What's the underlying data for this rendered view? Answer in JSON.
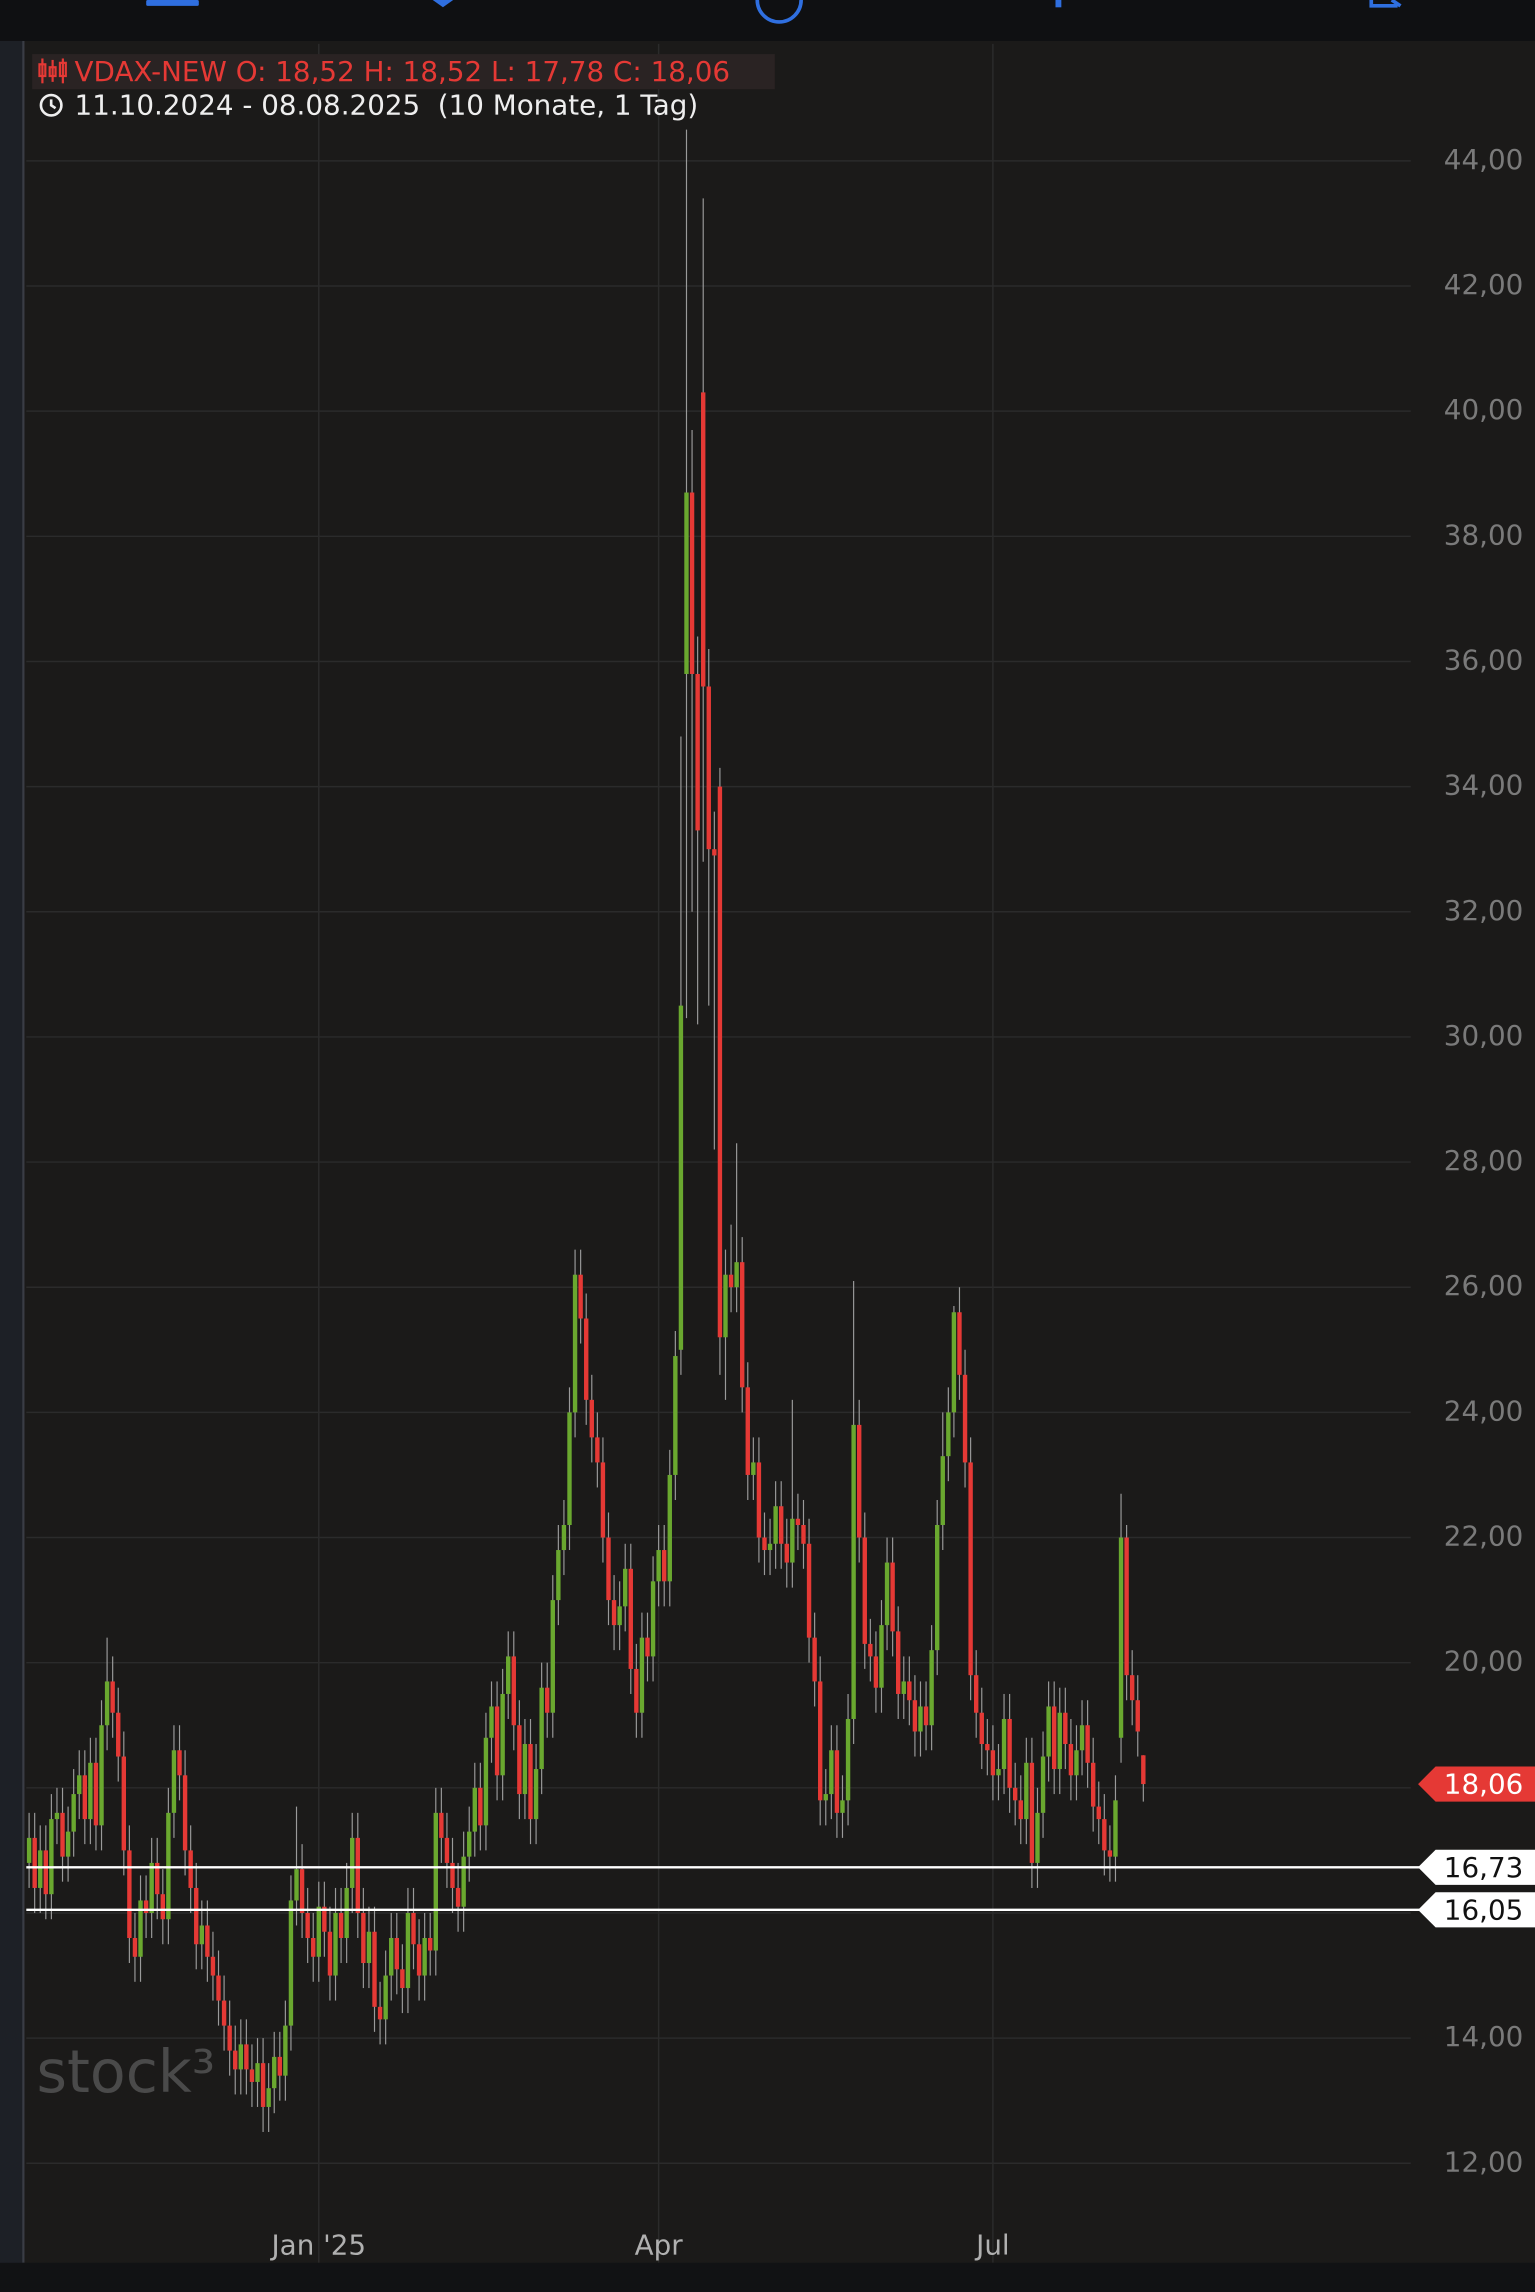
{
  "chart_data": {
    "type": "candlestick",
    "title": "VDAX-NEW",
    "ohlc": [
      {
        "key": "O:",
        "label": "18,52"
      },
      {
        "key": "H:",
        "label": "18,52"
      },
      {
        "key": "L:",
        "label": "17,78"
      },
      {
        "key": "C:",
        "label": "18,06"
      }
    ],
    "date_range": "11.10.2024 - 08.08.2025",
    "period": "(10 Monate, 1 Tag)",
    "watermark": "stock³",
    "up_color": "#6aa82f",
    "down_color": "#e53935",
    "grid": true,
    "x": [
      0,
      1,
      2,
      3,
      4,
      5,
      6,
      7,
      8,
      9,
      10,
      11,
      12,
      13,
      14,
      15,
      16,
      17,
      18,
      19,
      20,
      21,
      22,
      23,
      24,
      25,
      26,
      27,
      28,
      29,
      30,
      31,
      32,
      33,
      34,
      35,
      36,
      37,
      38,
      39,
      40,
      41,
      42,
      43,
      44,
      45,
      46,
      47,
      48,
      49,
      50,
      51,
      52,
      53,
      54,
      55,
      56,
      57,
      58,
      59,
      60,
      61,
      62,
      63,
      64,
      65,
      66,
      67,
      68,
      69,
      70,
      71,
      72,
      73,
      74,
      75,
      76,
      77,
      78,
      79,
      80,
      81,
      82,
      83,
      84,
      85,
      86,
      87,
      88,
      89,
      90,
      91,
      92,
      93,
      94,
      95,
      96,
      97,
      98,
      99,
      100,
      101,
      102,
      103,
      104,
      105,
      106,
      107,
      108,
      109,
      110,
      111,
      112,
      113,
      114,
      115,
      116,
      117,
      118,
      119,
      120,
      121,
      122,
      123,
      124,
      125,
      126,
      127,
      128,
      129,
      130,
      131,
      132,
      133,
      134,
      135,
      136,
      137,
      138,
      139,
      140,
      141,
      142,
      143,
      144,
      145,
      146,
      147,
      148,
      149,
      150,
      151,
      152,
      153,
      154,
      155,
      156,
      157,
      158,
      159,
      160,
      161,
      162,
      163,
      164,
      165,
      166,
      167,
      168,
      169,
      170,
      171,
      172,
      173,
      174,
      175,
      176,
      177,
      178,
      179,
      180,
      181,
      182,
      183,
      184,
      185,
      186,
      187,
      188,
      189,
      190,
      191,
      192,
      193,
      194,
      195,
      196,
      197,
      198,
      199,
      200
    ],
    "open": [
      16.8,
      17.2,
      16.4,
      17.0,
      16.3,
      17.5,
      17.6,
      16.9,
      17.3,
      17.9,
      18.2,
      17.5,
      18.4,
      17.4,
      19.0,
      19.7,
      19.2,
      18.5,
      17.0,
      15.6,
      15.3,
      16.2,
      16.0,
      16.8,
      16.3,
      15.9,
      17.6,
      18.6,
      18.2,
      17.0,
      16.4,
      15.5,
      15.8,
      15.3,
      15.0,
      14.6,
      14.2,
      13.8,
      13.5,
      13.9,
      13.5,
      13.3,
      13.6,
      12.9,
      13.2,
      13.7,
      13.4,
      14.2,
      16.2,
      16.7,
      16.0,
      15.6,
      15.3,
      16.1,
      15.7,
      15.0,
      16.0,
      15.6,
      16.4,
      17.2,
      16.0,
      15.2,
      15.7,
      14.5,
      14.3,
      15.0,
      15.6,
      15.1,
      14.8,
      16.0,
      15.5,
      15.0,
      15.6,
      15.4,
      17.6,
      17.2,
      16.8,
      16.4,
      16.1,
      16.9,
      17.3,
      18.0,
      17.4,
      18.8,
      19.3,
      18.2,
      19.5,
      20.1,
      19.0,
      17.9,
      18.7,
      17.5,
      18.3,
      19.6,
      19.2,
      21.0,
      21.8,
      22.2,
      24.0,
      26.2,
      25.5,
      24.2,
      23.6,
      23.2,
      22.0,
      21.0,
      20.6,
      20.9,
      21.5,
      19.9,
      19.2,
      20.4,
      20.1,
      21.3,
      21.8,
      21.3,
      23.0,
      25.0,
      35.8,
      38.7,
      35.8,
      40.3,
      35.6,
      33.0,
      34.0,
      25.2,
      26.2,
      26.0,
      26.4,
      24.4,
      23.0,
      23.2,
      22.0,
      21.8,
      21.9,
      22.5,
      21.9,
      21.6,
      22.3,
      22.2,
      21.9,
      20.4,
      19.7,
      17.8,
      17.9,
      18.6,
      17.6,
      17.8,
      19.1,
      23.8,
      22.0,
      20.3,
      20.1,
      19.6,
      20.6,
      21.6,
      20.5,
      19.5,
      19.7,
      19.4,
      18.9,
      19.3,
      19.0,
      20.2,
      22.2,
      23.3,
      24.0,
      25.6,
      24.6,
      23.2,
      19.8,
      19.2,
      18.7,
      18.6,
      18.2,
      18.3,
      19.1,
      18.0,
      17.8,
      17.5,
      18.4,
      16.8,
      17.6,
      18.5,
      19.3,
      18.3,
      19.2,
      18.7,
      18.2,
      18.6,
      19.0,
      18.4,
      17.7,
      17.5,
      17.0,
      16.9,
      18.8,
      22.0,
      19.8,
      19.4,
      18.52
    ],
    "high": [
      17.6,
      17.6,
      17.4,
      17.4,
      17.9,
      18.0,
      18.0,
      17.7,
      18.3,
      18.6,
      18.6,
      18.8,
      18.8,
      19.4,
      20.4,
      20.1,
      19.6,
      18.9,
      17.4,
      16.0,
      16.6,
      16.6,
      17.2,
      17.2,
      16.7,
      18.0,
      19.0,
      19.0,
      18.6,
      17.4,
      16.8,
      16.2,
      16.2,
      15.7,
      15.4,
      15.0,
      14.6,
      14.2,
      14.3,
      14.3,
      13.9,
      14.0,
      14.0,
      13.6,
      14.1,
      14.1,
      14.6,
      16.6,
      17.7,
      17.1,
      16.4,
      16.0,
      16.5,
      16.5,
      16.1,
      16.4,
      16.4,
      16.8,
      17.6,
      17.6,
      16.4,
      16.1,
      16.1,
      14.9,
      15.4,
      16.0,
      16.0,
      15.5,
      16.4,
      16.4,
      15.9,
      16.0,
      16.0,
      18.0,
      18.0,
      17.6,
      17.2,
      16.8,
      17.3,
      17.7,
      18.4,
      18.4,
      19.2,
      19.7,
      19.7,
      19.9,
      20.5,
      20.5,
      19.4,
      19.1,
      19.1,
      18.7,
      20.0,
      20.0,
      21.4,
      22.2,
      22.6,
      24.4,
      26.6,
      26.6,
      25.9,
      24.6,
      24.0,
      23.6,
      22.4,
      21.4,
      21.3,
      21.9,
      21.9,
      20.3,
      20.8,
      20.8,
      21.7,
      22.2,
      22.2,
      23.4,
      25.3,
      34.8,
      44.5,
      39.7,
      36.4,
      43.4,
      36.2,
      33.6,
      34.3,
      26.6,
      27.0,
      28.3,
      26.8,
      24.8,
      23.6,
      23.6,
      22.4,
      22.3,
      22.9,
      22.9,
      22.3,
      24.2,
      22.7,
      22.6,
      22.3,
      20.8,
      20.1,
      18.3,
      19.0,
      19.0,
      18.2,
      19.5,
      26.1,
      24.2,
      22.4,
      20.7,
      20.5,
      21.0,
      22.0,
      22.0,
      20.9,
      20.1,
      20.1,
      19.8,
      19.7,
      19.7,
      20.6,
      22.6,
      24.0,
      24.4,
      25.7,
      26.0,
      25.0,
      23.6,
      20.2,
      19.6,
      19.1,
      19.0,
      18.7,
      19.5,
      19.5,
      18.4,
      18.2,
      18.8,
      18.8,
      18.0,
      18.9,
      19.7,
      19.7,
      19.6,
      19.6,
      19.1,
      19.0,
      19.4,
      19.4,
      18.8,
      18.1,
      17.9,
      17.4,
      18.2,
      22.7,
      22.2,
      20.2,
      19.8,
      18.52
    ],
    "low": [
      16.4,
      16.0,
      16.0,
      15.9,
      15.9,
      17.1,
      16.5,
      16.5,
      16.9,
      17.5,
      17.1,
      17.1,
      17.0,
      17.0,
      18.6,
      18.8,
      18.1,
      16.6,
      15.2,
      14.9,
      14.9,
      15.6,
      15.6,
      15.9,
      15.5,
      15.5,
      17.2,
      17.8,
      16.6,
      16.0,
      15.1,
      15.1,
      14.9,
      14.6,
      14.2,
      13.8,
      13.4,
      13.1,
      13.1,
      13.1,
      12.9,
      12.9,
      12.5,
      12.5,
      12.8,
      13.0,
      13.0,
      13.8,
      15.8,
      15.6,
      15.2,
      14.9,
      14.9,
      15.3,
      14.6,
      14.6,
      15.2,
      15.2,
      16.0,
      15.6,
      14.8,
      14.8,
      14.1,
      13.9,
      13.9,
      14.6,
      14.7,
      14.4,
      14.4,
      15.1,
      14.6,
      14.6,
      15.0,
      15.0,
      16.8,
      16.4,
      16.0,
      15.7,
      15.7,
      16.5,
      16.9,
      17.0,
      17.0,
      18.4,
      17.8,
      17.8,
      19.1,
      18.6,
      17.5,
      17.5,
      17.1,
      17.1,
      17.9,
      18.8,
      18.8,
      20.6,
      21.4,
      21.8,
      23.6,
      25.1,
      23.8,
      23.2,
      22.8,
      21.6,
      20.6,
      20.2,
      20.2,
      20.5,
      19.5,
      18.8,
      18.8,
      19.7,
      19.7,
      20.9,
      20.9,
      20.9,
      22.6,
      24.6,
      30.3,
      32.0,
      30.2,
      32.8,
      30.5,
      28.2,
      24.6,
      24.2,
      25.6,
      25.6,
      24.0,
      22.6,
      22.6,
      21.6,
      21.4,
      21.4,
      21.5,
      21.5,
      21.2,
      21.2,
      21.8,
      21.5,
      20.0,
      19.3,
      17.4,
      17.4,
      17.5,
      17.2,
      17.2,
      17.4,
      18.7,
      21.6,
      19.9,
      19.7,
      19.2,
      19.2,
      20.2,
      20.1,
      19.1,
      19.1,
      19.0,
      18.5,
      18.5,
      18.6,
      18.6,
      19.8,
      21.8,
      22.9,
      23.6,
      24.2,
      22.8,
      19.4,
      18.8,
      18.3,
      18.2,
      17.8,
      17.8,
      17.9,
      17.6,
      17.4,
      17.1,
      17.1,
      16.4,
      16.4,
      17.2,
      18.1,
      17.9,
      17.9,
      18.3,
      17.8,
      17.8,
      18.2,
      18.0,
      17.3,
      17.1,
      16.6,
      16.5,
      16.5,
      18.4,
      19.4,
      19.0,
      18.5,
      17.78
    ],
    "close": [
      17.2,
      16.4,
      17.0,
      16.3,
      17.5,
      17.6,
      16.9,
      17.3,
      17.9,
      18.2,
      17.5,
      18.4,
      17.4,
      19.0,
      19.7,
      19.2,
      18.5,
      17.0,
      15.6,
      15.3,
      16.2,
      16.0,
      16.8,
      16.3,
      15.9,
      17.6,
      18.6,
      18.2,
      17.0,
      16.4,
      15.5,
      15.8,
      15.3,
      15.0,
      14.6,
      14.2,
      13.8,
      13.5,
      13.9,
      13.5,
      13.3,
      13.6,
      12.9,
      13.2,
      13.7,
      13.4,
      14.2,
      16.2,
      16.7,
      16.0,
      15.6,
      15.3,
      16.1,
      15.7,
      15.0,
      16.0,
      15.6,
      16.4,
      17.2,
      16.0,
      15.2,
      15.7,
      14.5,
      14.3,
      15.0,
      15.6,
      15.1,
      14.8,
      16.0,
      15.5,
      15.0,
      15.6,
      15.4,
      17.6,
      17.2,
      16.8,
      16.4,
      16.1,
      16.9,
      17.3,
      18.0,
      17.4,
      18.8,
      19.3,
      18.2,
      19.5,
      20.1,
      19.0,
      17.9,
      18.7,
      17.5,
      18.3,
      19.6,
      19.2,
      21.0,
      21.8,
      22.2,
      24.0,
      26.2,
      25.5,
      24.2,
      23.6,
      23.2,
      22.0,
      21.0,
      20.6,
      20.9,
      21.5,
      19.9,
      19.2,
      20.4,
      20.1,
      21.3,
      21.8,
      21.3,
      23.0,
      24.9,
      30.5,
      38.7,
      35.8,
      33.3,
      35.6,
      33.0,
      32.9,
      25.2,
      26.2,
      26.0,
      26.4,
      24.4,
      23.0,
      23.2,
      22.0,
      21.8,
      21.9,
      22.5,
      21.9,
      21.6,
      22.3,
      22.2,
      21.9,
      20.4,
      19.7,
      17.8,
      17.9,
      18.6,
      17.6,
      17.8,
      19.1,
      23.8,
      22.0,
      20.3,
      20.1,
      19.6,
      20.6,
      21.6,
      20.5,
      19.5,
      19.7,
      19.4,
      18.9,
      19.3,
      19.0,
      20.2,
      22.2,
      23.3,
      24.0,
      25.6,
      24.6,
      23.2,
      19.8,
      19.2,
      18.7,
      18.6,
      18.2,
      18.3,
      19.1,
      18.0,
      17.8,
      17.5,
      18.4,
      16.8,
      17.6,
      18.5,
      19.3,
      18.3,
      19.2,
      18.7,
      18.2,
      18.6,
      19.0,
      18.4,
      17.7,
      17.5,
      17.0,
      16.9,
      17.8,
      22.0,
      19.8,
      19.4,
      18.9,
      18.06
    ],
    "xlim": [
      -0.5,
      248
    ],
    "xticks": [
      {
        "value": 52,
        "label": "Jan '25"
      },
      {
        "value": 113,
        "label": "Apr"
      },
      {
        "value": 173,
        "label": "Jul"
      }
    ],
    "ylim": [
      10.41,
      45.87
    ],
    "yticks": [
      {
        "value": 12,
        "label": "12,00"
      },
      {
        "value": 14,
        "label": "14,00"
      },
      {
        "value": 16,
        "label": "16,00"
      },
      {
        "value": 18,
        "label": "18,00"
      },
      {
        "value": 20,
        "label": "20,00"
      },
      {
        "value": 22,
        "label": "22,00"
      },
      {
        "value": 24,
        "label": "24,00"
      },
      {
        "value": 26,
        "label": "26,00"
      },
      {
        "value": 28,
        "label": "28,00"
      },
      {
        "value": 30,
        "label": "30,00"
      },
      {
        "value": 32,
        "label": "32,00"
      },
      {
        "value": 34,
        "label": "34,00"
      },
      {
        "value": 36,
        "label": "36,00"
      },
      {
        "value": 38,
        "label": "38,00"
      },
      {
        "value": 40,
        "label": "40,00"
      },
      {
        "value": 42,
        "label": "42,00"
      },
      {
        "value": 44,
        "label": "44,00"
      }
    ],
    "levels": [
      {
        "value": 16.73,
        "label": "16,73"
      },
      {
        "value": 16.05,
        "label": "16,05"
      }
    ],
    "last_price": {
      "value": 18.06,
      "label": "18,06"
    }
  }
}
